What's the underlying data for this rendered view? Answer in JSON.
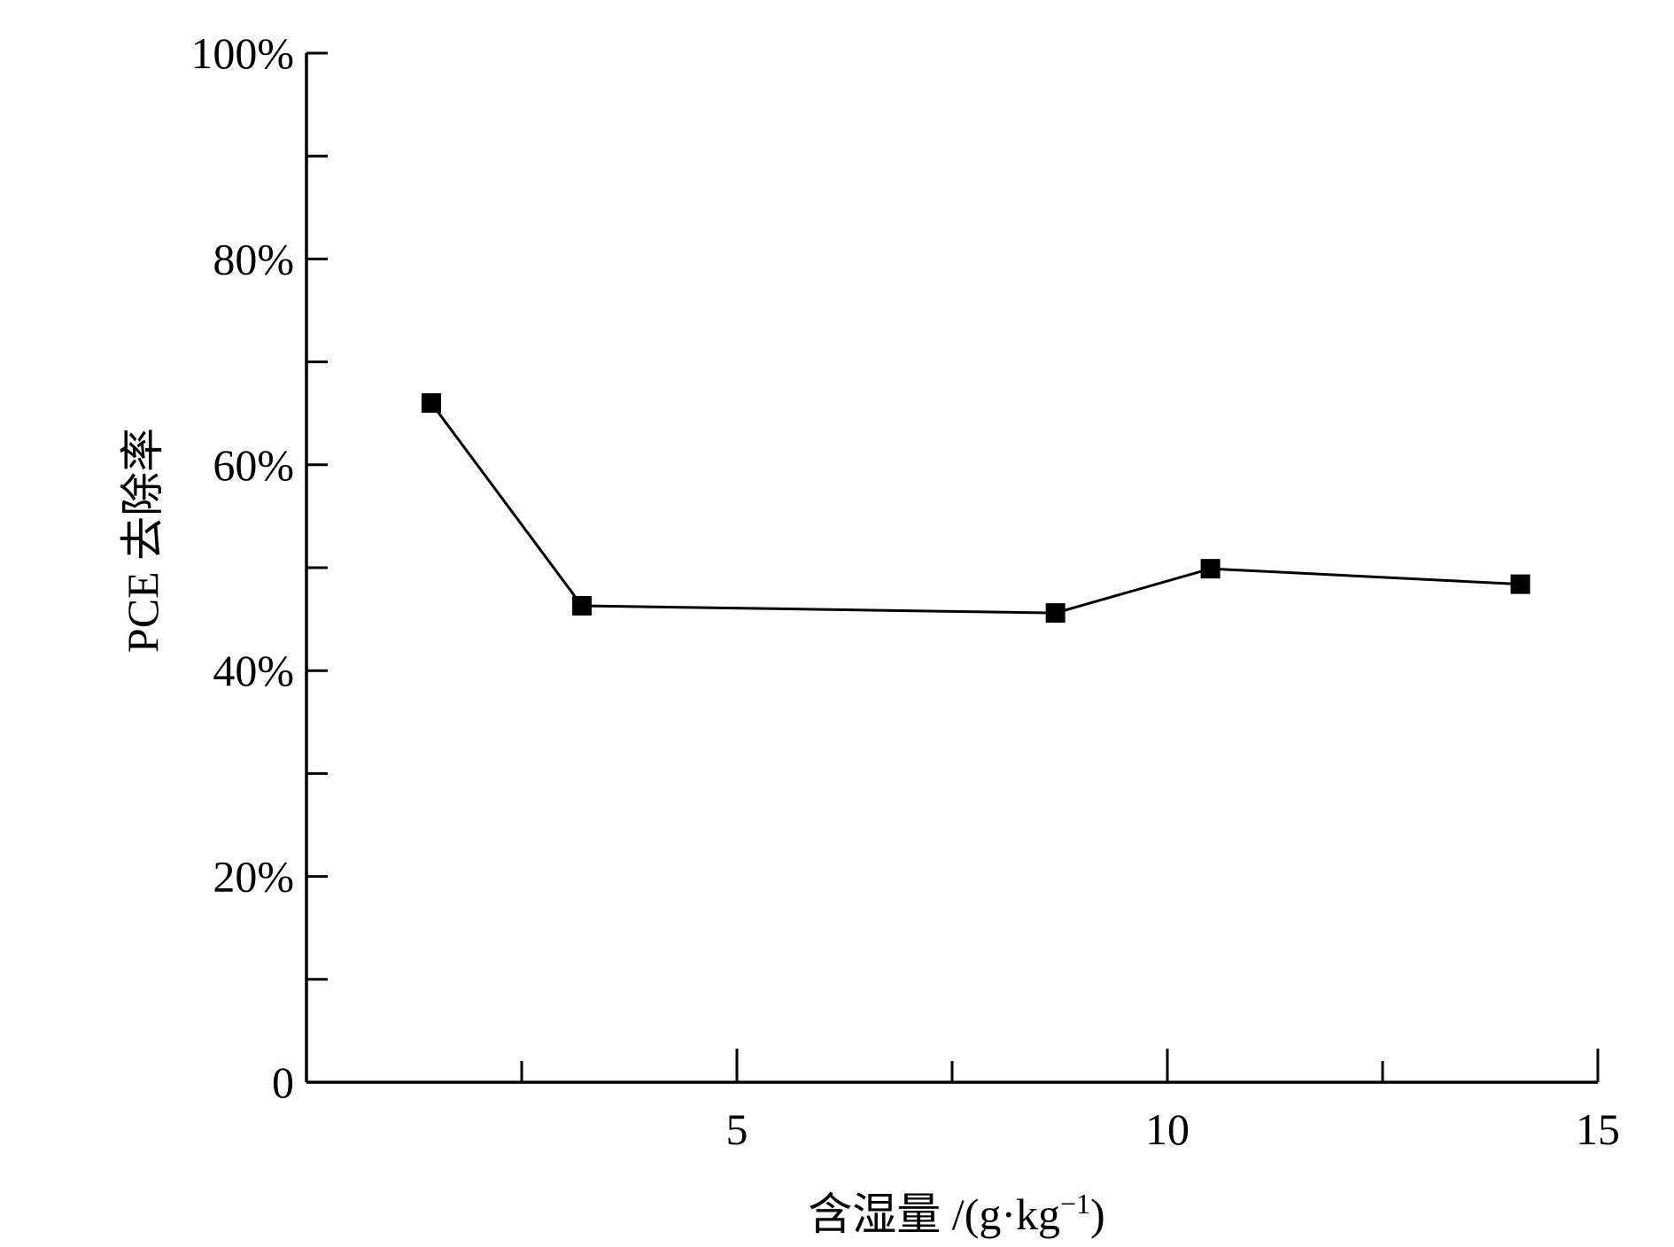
{
  "chart_data": {
    "type": "line",
    "x": [
      1.45,
      3.2,
      8.7,
      10.5,
      14.1
    ],
    "series": [
      {
        "values": [
          66.0,
          46.3,
          45.6,
          49.9,
          48.4
        ]
      }
    ],
    "xlabel": "含湿量 /(g·kg",
    "xlabel_sup": "−1",
    "xlabel_close": ")",
    "ylabel": "PCE 去除率",
    "xlim": [
      0,
      15
    ],
    "ylim": [
      0,
      100
    ],
    "xticks": [
      5,
      10,
      15
    ],
    "xtick_labels": [
      "5",
      "10",
      "15"
    ],
    "yticks": [
      0,
      20,
      40,
      60,
      80,
      100
    ],
    "ytick_labels": [
      "0",
      "20%",
      "40%",
      "60%",
      "80%",
      "100%"
    ],
    "grid": false,
    "marker": "square",
    "colors": {
      "line": "#000000",
      "marker": "#000000"
    }
  }
}
